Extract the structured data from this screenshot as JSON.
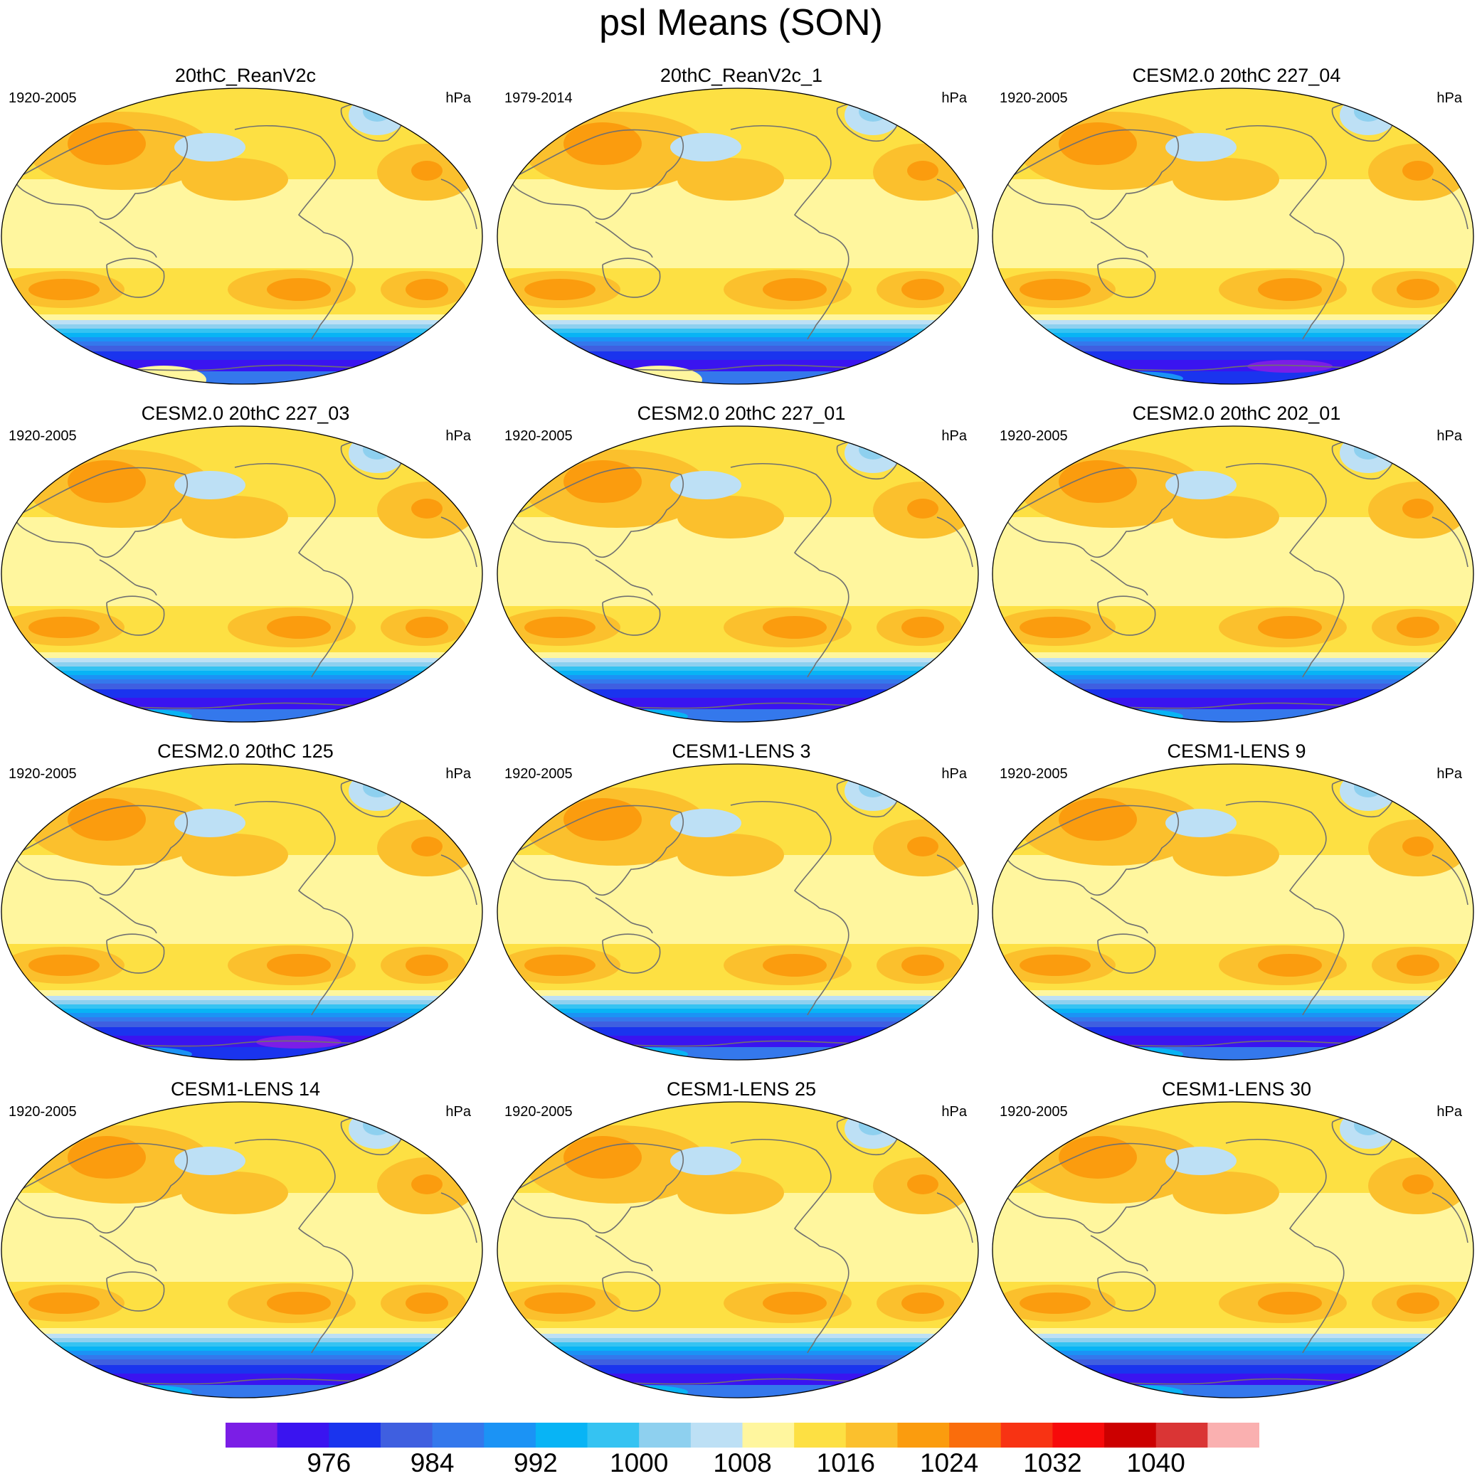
{
  "figure": {
    "title": "psl Means (SON)",
    "unit": "hPa"
  },
  "panels": [
    {
      "title": "20thC_ReanV2c",
      "years": "1920-2005",
      "antarctic": "rean"
    },
    {
      "title": "20thC_ReanV2c_1",
      "years": "1979-2014",
      "antarctic": "rean"
    },
    {
      "title": "CESM2.0 20thC 227_04",
      "years": "1920-2005",
      "antarctic": "deep"
    },
    {
      "title": "CESM2.0 20thC 227_03",
      "years": "1920-2005",
      "antarctic": "model"
    },
    {
      "title": "CESM2.0 20thC 227_01",
      "years": "1920-2005",
      "antarctic": "model"
    },
    {
      "title": "CESM2.0 20thC 202_01",
      "years": "1920-2005",
      "antarctic": "model"
    },
    {
      "title": "CESM2.0 20thC 125",
      "years": "1920-2005",
      "antarctic": "deep"
    },
    {
      "title": "CESM1-LENS 3",
      "years": "1920-2005",
      "antarctic": "model"
    },
    {
      "title": "CESM1-LENS 9",
      "years": "1920-2005",
      "antarctic": "model"
    },
    {
      "title": "CESM1-LENS 14",
      "years": "1920-2005",
      "antarctic": "model"
    },
    {
      "title": "CESM1-LENS 25",
      "years": "1920-2005",
      "antarctic": "model"
    },
    {
      "title": "CESM1-LENS 30",
      "years": "1920-2005",
      "antarctic": "model"
    }
  ],
  "colorbar": {
    "colors": [
      "#7b1ee6",
      "#3a14f0",
      "#1a34ee",
      "#3f5fe0",
      "#3478ec",
      "#1b93f5",
      "#08b4f5",
      "#35c3f2",
      "#8ed0ef",
      "#bde0f5",
      "#fff69e",
      "#fde043",
      "#fbc02d",
      "#fb9c0e",
      "#fa6d0c",
      "#f83313",
      "#f70a0a",
      "#cc0000",
      "#da3535",
      "#fab0b0"
    ],
    "labels": [
      "976",
      "984",
      "992",
      "1000",
      "1008",
      "1016",
      "1024",
      "1032",
      "1040"
    ],
    "label_boundaries": [
      2,
      4,
      6,
      8,
      10,
      12,
      14,
      16,
      18
    ]
  }
}
